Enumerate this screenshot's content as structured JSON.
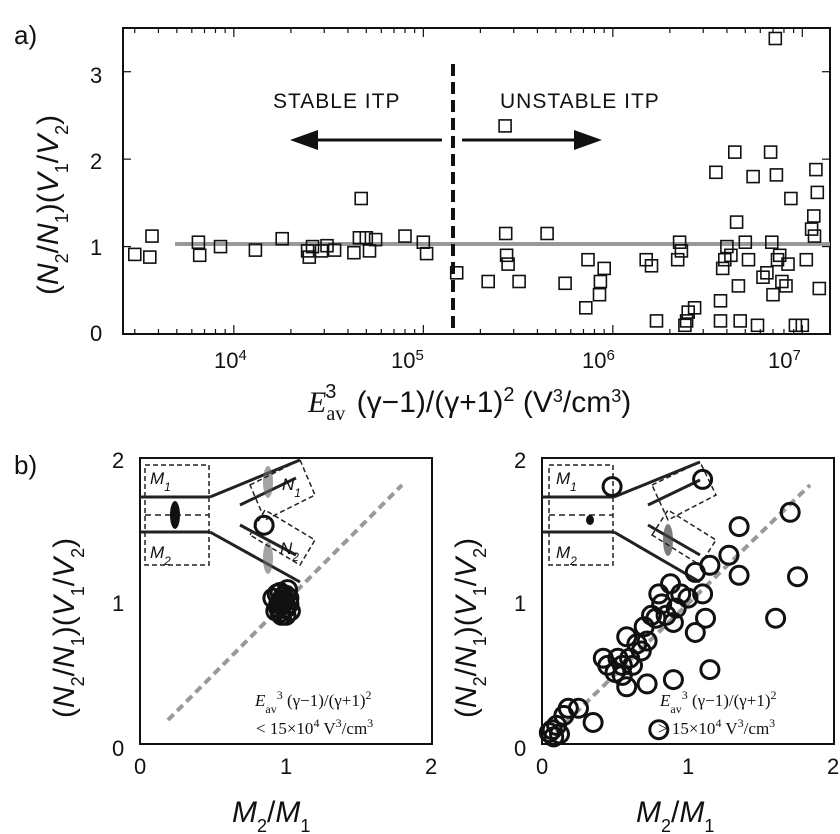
{
  "chart_data": [
    {
      "panel": "a)",
      "type": "scatter",
      "xlabel": "E_av^3 (γ−1)/(γ+1)^2 (V^3/cm^3)",
      "ylabel": "(N2/N1)(V1/V2)",
      "xscale": "log",
      "xlim": [
        2600,
        14000000
      ],
      "ylim": [
        0,
        3.5
      ],
      "x_ticks": [
        "10^4",
        "10^5",
        "10^6",
        "10^7"
      ],
      "y_ticks": [
        "0",
        "1",
        "2",
        "3"
      ],
      "reference_line_y": 1,
      "threshold_x": 135000,
      "annotations": [
        "STABLE ITP",
        "UNSTABLE ITP"
      ],
      "points": [
        [
          3000,
          0.91
        ],
        [
          3600,
          0.88
        ],
        [
          3700,
          1.12
        ],
        [
          6500,
          1.05
        ],
        [
          6600,
          0.9
        ],
        [
          8500,
          1.0
        ],
        [
          13000,
          0.96
        ],
        [
          18000,
          1.09
        ],
        [
          24500,
          0.95
        ],
        [
          25000,
          0.88
        ],
        [
          26000,
          1.0
        ],
        [
          29000,
          0.95
        ],
        [
          31000,
          1.01
        ],
        [
          34000,
          0.96
        ],
        [
          43000,
          0.93
        ],
        [
          46000,
          1.1
        ],
        [
          47000,
          1.55
        ],
        [
          50000,
          1.1
        ],
        [
          52000,
          0.95
        ],
        [
          56000,
          1.08
        ],
        [
          80000,
          1.12
        ],
        [
          100000,
          1.05
        ],
        [
          104000,
          0.92
        ],
        [
          150000,
          0.7
        ],
        [
          220000,
          0.6
        ],
        [
          270000,
          2.38
        ],
        [
          272000,
          1.15
        ],
        [
          275000,
          0.9
        ],
        [
          280000,
          0.8
        ],
        [
          320000,
          0.6
        ],
        [
          450000,
          1.15
        ],
        [
          560000,
          0.58
        ],
        [
          720000,
          0.3
        ],
        [
          740000,
          0.85
        ],
        [
          850000,
          0.45
        ],
        [
          860000,
          0.6
        ],
        [
          900000,
          0.75
        ],
        [
          1500000,
          0.85
        ],
        [
          1600000,
          0.78
        ],
        [
          1700000,
          0.15
        ],
        [
          2200000,
          0.85
        ],
        [
          2250000,
          1.05
        ],
        [
          2300000,
          0.95
        ],
        [
          2400000,
          0.1
        ],
        [
          2450000,
          0.15
        ],
        [
          2500000,
          0.25
        ],
        [
          2700000,
          0.3
        ],
        [
          3500000,
          1.85
        ],
        [
          3700000,
          0.15
        ],
        [
          3700000,
          0.38
        ],
        [
          3800000,
          0.75
        ],
        [
          3900000,
          0.85
        ],
        [
          4000000,
          1.0
        ],
        [
          4200000,
          0.9
        ],
        [
          4400000,
          2.08
        ],
        [
          4500000,
          1.28
        ],
        [
          4600000,
          0.55
        ],
        [
          4700000,
          0.15
        ],
        [
          5000000,
          1.05
        ],
        [
          5200000,
          0.85
        ],
        [
          5500000,
          1.8
        ],
        [
          5800000,
          0.1
        ],
        [
          6200000,
          0.65
        ],
        [
          6500000,
          0.7
        ],
        [
          6800000,
          2.08
        ],
        [
          6900000,
          1.05
        ],
        [
          7000000,
          0.45
        ],
        [
          7200000,
          3.38
        ],
        [
          7300000,
          1.82
        ],
        [
          7400000,
          0.85
        ],
        [
          7600000,
          0.9
        ],
        [
          7800000,
          0.6
        ],
        [
          8200000,
          0.55
        ],
        [
          8400000,
          0.8
        ],
        [
          8700000,
          1.55
        ],
        [
          9200000,
          0.1
        ],
        [
          10000000,
          0.1
        ],
        [
          10500000,
          0.85
        ],
        [
          11200000,
          1.2
        ],
        [
          11500000,
          1.35
        ],
        [
          11600000,
          1.12
        ],
        [
          11800000,
          1.88
        ],
        [
          12000000,
          1.62
        ],
        [
          12300000,
          0.52
        ]
      ]
    },
    {
      "panel": "b)",
      "type": "scatter",
      "xlabel": "M2/M1",
      "ylabel": "(N2/N1)(V1/V2)",
      "xlim": [
        0,
        2
      ],
      "ylim": [
        0,
        2
      ],
      "x_ticks": [
        "0",
        "1",
        "2"
      ],
      "y_ticks": [
        "0",
        "1",
        "2"
      ],
      "annotation": [
        "E_av^3 (γ−1)/(γ+1)^2",
        "< 15×10^4 V^3/cm^3"
      ],
      "inset_labels": [
        "M1",
        "M2",
        "N1",
        "N2"
      ],
      "points": [
        [
          0.85,
          1.53
        ],
        [
          0.91,
          1.02
        ],
        [
          0.93,
          0.93
        ],
        [
          0.95,
          0.98
        ],
        [
          0.96,
          1.06
        ],
        [
          0.97,
          0.9
        ],
        [
          0.98,
          1.03
        ],
        [
          1.0,
          0.95
        ],
        [
          1.01,
          1.08
        ],
        [
          1.02,
          0.98
        ],
        [
          0.97,
          0.97
        ],
        [
          0.99,
          1.01
        ],
        [
          0.94,
          1.05
        ],
        [
          1.03,
          0.93
        ],
        [
          0.96,
          0.92
        ],
        [
          1.0,
          1.04
        ],
        [
          0.98,
          0.99
        ],
        [
          1.02,
          1.02
        ],
        [
          0.95,
          0.95
        ],
        [
          1.0,
          0.9
        ]
      ]
    },
    {
      "panel": "",
      "type": "scatter",
      "xlabel": "M2/M1",
      "ylabel": "(N2/N1)(V1/V2)",
      "xlim": [
        0,
        2
      ],
      "ylim": [
        0,
        2
      ],
      "x_ticks": [
        "0",
        "1",
        "2"
      ],
      "y_ticks": [
        "0",
        "1",
        "2"
      ],
      "annotation": [
        "E_av^3 (γ−1)/(γ+1)^2",
        "> 15×10^4 V^3/cm^3"
      ],
      "inset_labels": [
        "M1",
        "M2"
      ],
      "points": [
        [
          0.05,
          0.08
        ],
        [
          0.07,
          0.1
        ],
        [
          0.08,
          0.05
        ],
        [
          0.1,
          0.13
        ],
        [
          0.12,
          0.07
        ],
        [
          0.15,
          0.2
        ],
        [
          0.18,
          0.25
        ],
        [
          0.25,
          0.25
        ],
        [
          0.35,
          0.15
        ],
        [
          0.45,
          0.55
        ],
        [
          0.5,
          0.5
        ],
        [
          0.52,
          0.6
        ],
        [
          0.55,
          0.48
        ],
        [
          0.55,
          0.55
        ],
        [
          0.58,
          0.75
        ],
        [
          0.6,
          0.6
        ],
        [
          0.62,
          0.55
        ],
        [
          0.65,
          0.7
        ],
        [
          0.68,
          0.65
        ],
        [
          0.7,
          0.82
        ],
        [
          0.72,
          0.42
        ],
        [
          0.75,
          0.9
        ],
        [
          0.78,
          0.88
        ],
        [
          0.8,
          1.05
        ],
        [
          0.82,
          0.98
        ],
        [
          0.85,
          0.9
        ],
        [
          0.88,
          1.12
        ],
        [
          0.9,
          0.85
        ],
        [
          0.92,
          0.95
        ],
        [
          1.05,
          1.2
        ],
        [
          1.05,
          0.78
        ],
        [
          1.1,
          1.05
        ],
        [
          1.12,
          0.88
        ],
        [
          1.15,
          1.25
        ],
        [
          1.15,
          0.52
        ],
        [
          1.28,
          1.32
        ],
        [
          1.35,
          1.52
        ],
        [
          1.35,
          1.18
        ],
        [
          1.6,
          0.88
        ],
        [
          1.7,
          1.62
        ],
        [
          1.75,
          1.17
        ],
        [
          0.9,
          0.45
        ],
        [
          0.8,
          0.1
        ],
        [
          1.0,
          1.02
        ],
        [
          0.95,
          1.05
        ],
        [
          0.48,
          1.8
        ],
        [
          1.1,
          1.85
        ],
        [
          0.58,
          0.4
        ],
        [
          0.42,
          0.6
        ],
        [
          0.72,
          0.72
        ]
      ]
    }
  ]
}
